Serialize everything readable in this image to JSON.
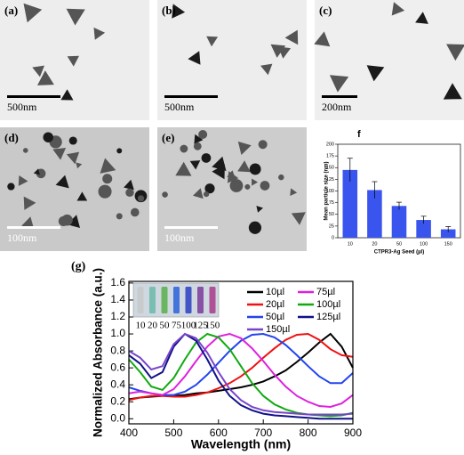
{
  "panels": [
    {
      "label": "(a)",
      "scale": "500nm"
    },
    {
      "label": "(b)",
      "scale": "500nm"
    },
    {
      "label": "(c)",
      "scale": "200nm"
    },
    {
      "label": "(d)",
      "scale": "100nm"
    },
    {
      "label": "(e)",
      "scale": "100nm"
    }
  ],
  "chart_data": [
    {
      "type": "bar",
      "title": "f",
      "ylabel": "Mean particle size (nm)",
      "xlabel": "CTPR3-Ag Seed (µl)",
      "categories": [
        "10",
        "20",
        "50",
        "100",
        "150"
      ],
      "values": [
        145,
        102,
        68,
        38,
        18
      ],
      "errors": [
        25,
        18,
        8,
        8,
        6
      ],
      "color": "#3a55ee",
      "ylim": [
        0,
        200
      ],
      "yticks": [
        0,
        25,
        50,
        75,
        100,
        125,
        150,
        175,
        200
      ]
    },
    {
      "type": "line",
      "title": "(g)",
      "xlabel": "Wavelength (nm)",
      "ylabel": "Normalized Absorbance (a.u.)",
      "inset_labels": [
        "10",
        "20",
        "50",
        "75",
        "100",
        "125",
        "150"
      ],
      "x": [
        400,
        425,
        450,
        475,
        500,
        525,
        550,
        575,
        600,
        625,
        650,
        675,
        700,
        725,
        750,
        775,
        800,
        825,
        850,
        875,
        900
      ],
      "xlim": [
        400,
        900
      ],
      "xticks": [
        400,
        500,
        600,
        700,
        800,
        900
      ],
      "ylim": [
        -0.06,
        1.62
      ],
      "yticks": [
        {
          "value": 0,
          "label": "0.0"
        },
        0.2,
        0.4,
        0.6,
        0.8,
        {
          "value": 1,
          "label": "1.0"
        },
        1.2,
        1.4,
        1.6
      ],
      "series": [
        {
          "name": "10µl",
          "color": "#000000",
          "values": [
            0.23,
            0.25,
            0.26,
            0.27,
            0.27,
            0.28,
            0.3,
            0.31,
            0.33,
            0.35,
            0.37,
            0.4,
            0.44,
            0.5,
            0.57,
            0.67,
            0.78,
            0.9,
            1.0,
            0.85,
            0.6
          ]
        },
        {
          "name": "20µl",
          "color": "#ee1111",
          "values": [
            0.22,
            0.25,
            0.27,
            0.27,
            0.26,
            0.26,
            0.28,
            0.31,
            0.36,
            0.42,
            0.5,
            0.6,
            0.72,
            0.83,
            0.93,
            0.99,
            1.0,
            0.93,
            0.82,
            0.75,
            0.73
          ]
        },
        {
          "name": "50µl",
          "color": "#2244ee",
          "values": [
            0.37,
            0.33,
            0.3,
            0.28,
            0.28,
            0.32,
            0.4,
            0.52,
            0.66,
            0.8,
            0.92,
            0.99,
            1.0,
            0.96,
            0.87,
            0.75,
            0.62,
            0.5,
            0.42,
            0.42,
            0.54
          ]
        },
        {
          "name": "75µl",
          "color": "#dd22dd",
          "values": [
            0.3,
            0.32,
            0.3,
            0.28,
            0.35,
            0.5,
            0.68,
            0.85,
            0.97,
            1.0,
            0.95,
            0.83,
            0.68,
            0.52,
            0.38,
            0.27,
            0.2,
            0.15,
            0.14,
            0.18,
            0.28
          ]
        },
        {
          "name": "100µl",
          "color": "#11aa11",
          "values": [
            0.7,
            0.55,
            0.38,
            0.34,
            0.48,
            0.7,
            0.9,
            1.0,
            0.96,
            0.82,
            0.62,
            0.42,
            0.27,
            0.17,
            0.11,
            0.07,
            0.05,
            0.04,
            0.03,
            0.04,
            0.07
          ]
        },
        {
          "name": "125µl",
          "color": "#111188",
          "values": [
            0.75,
            0.65,
            0.48,
            0.55,
            0.85,
            1.0,
            0.92,
            0.7,
            0.45,
            0.27,
            0.16,
            0.1,
            0.06,
            0.04,
            0.03,
            0.02,
            0.01,
            0,
            0,
            0,
            0
          ]
        },
        {
          "name": "150µl",
          "color": "#7744cc",
          "values": [
            0.8,
            0.72,
            0.58,
            0.62,
            0.88,
            1.0,
            0.95,
            0.78,
            0.55,
            0.35,
            0.22,
            0.14,
            0.1,
            0.08,
            0.07,
            0.06,
            0.05,
            0.05,
            0.05,
            0.05,
            0.06
          ]
        }
      ]
    }
  ]
}
